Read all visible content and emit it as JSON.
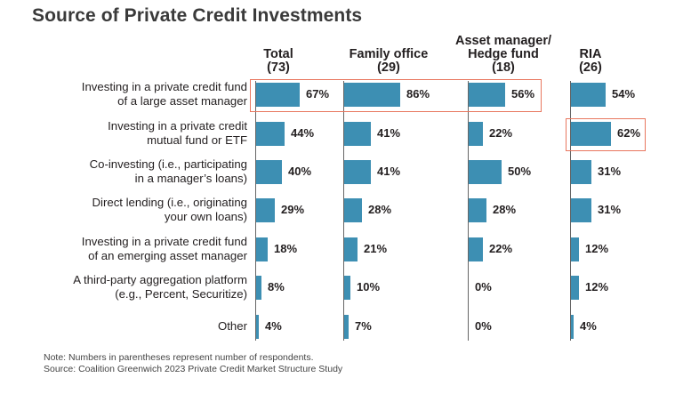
{
  "chart_data": {
    "type": "bar",
    "title": "Source of Private Credit Investments",
    "columns": [
      {
        "name": [
          "Total",
          "(73)"
        ]
      },
      {
        "name": [
          "Family office",
          "(29)"
        ]
      },
      {
        "name": [
          "Asset manager/",
          "Hedge fund",
          "(18)"
        ]
      },
      {
        "name": [
          "RIA",
          "(26)"
        ]
      }
    ],
    "categories": [
      [
        "Investing in a private credit fund",
        "of a large asset manager"
      ],
      [
        "Investing in a private credit",
        "mutual fund or ETF"
      ],
      [
        "Co-investing (i.e., participating",
        "in a manager’s loans)"
      ],
      [
        "Direct lending (i.e., originating",
        "your own loans)"
      ],
      [
        "Investing in a private credit fund",
        "of an emerging asset manager"
      ],
      [
        "A third-party aggregation platform",
        "(e.g., Percent, Securitize)"
      ],
      [
        "Other"
      ]
    ],
    "series": [
      {
        "name": "Total (73)",
        "values": [
          67,
          44,
          40,
          29,
          18,
          8,
          4
        ]
      },
      {
        "name": "Family office (29)",
        "values": [
          86,
          41,
          41,
          28,
          21,
          10,
          7
        ]
      },
      {
        "name": "Asset manager/Hedge fund (18)",
        "values": [
          56,
          22,
          50,
          28,
          22,
          0,
          0
        ]
      },
      {
        "name": "RIA (26)",
        "values": [
          54,
          62,
          31,
          31,
          12,
          12,
          4
        ]
      }
    ],
    "value_suffix": "%",
    "highlights": [
      {
        "series": [
          0,
          1,
          2
        ],
        "category": 0
      },
      {
        "series": [
          3
        ],
        "category": 1
      }
    ],
    "colors": {
      "bar": "#3d8fb3",
      "highlight": "#e8775f",
      "axis": "#666666"
    }
  },
  "notes": [
    "Note: Numbers in parentheses represent number of respondents.",
    "Source: Coalition Greenwich 2023 Private Credit Market Structure Study"
  ]
}
